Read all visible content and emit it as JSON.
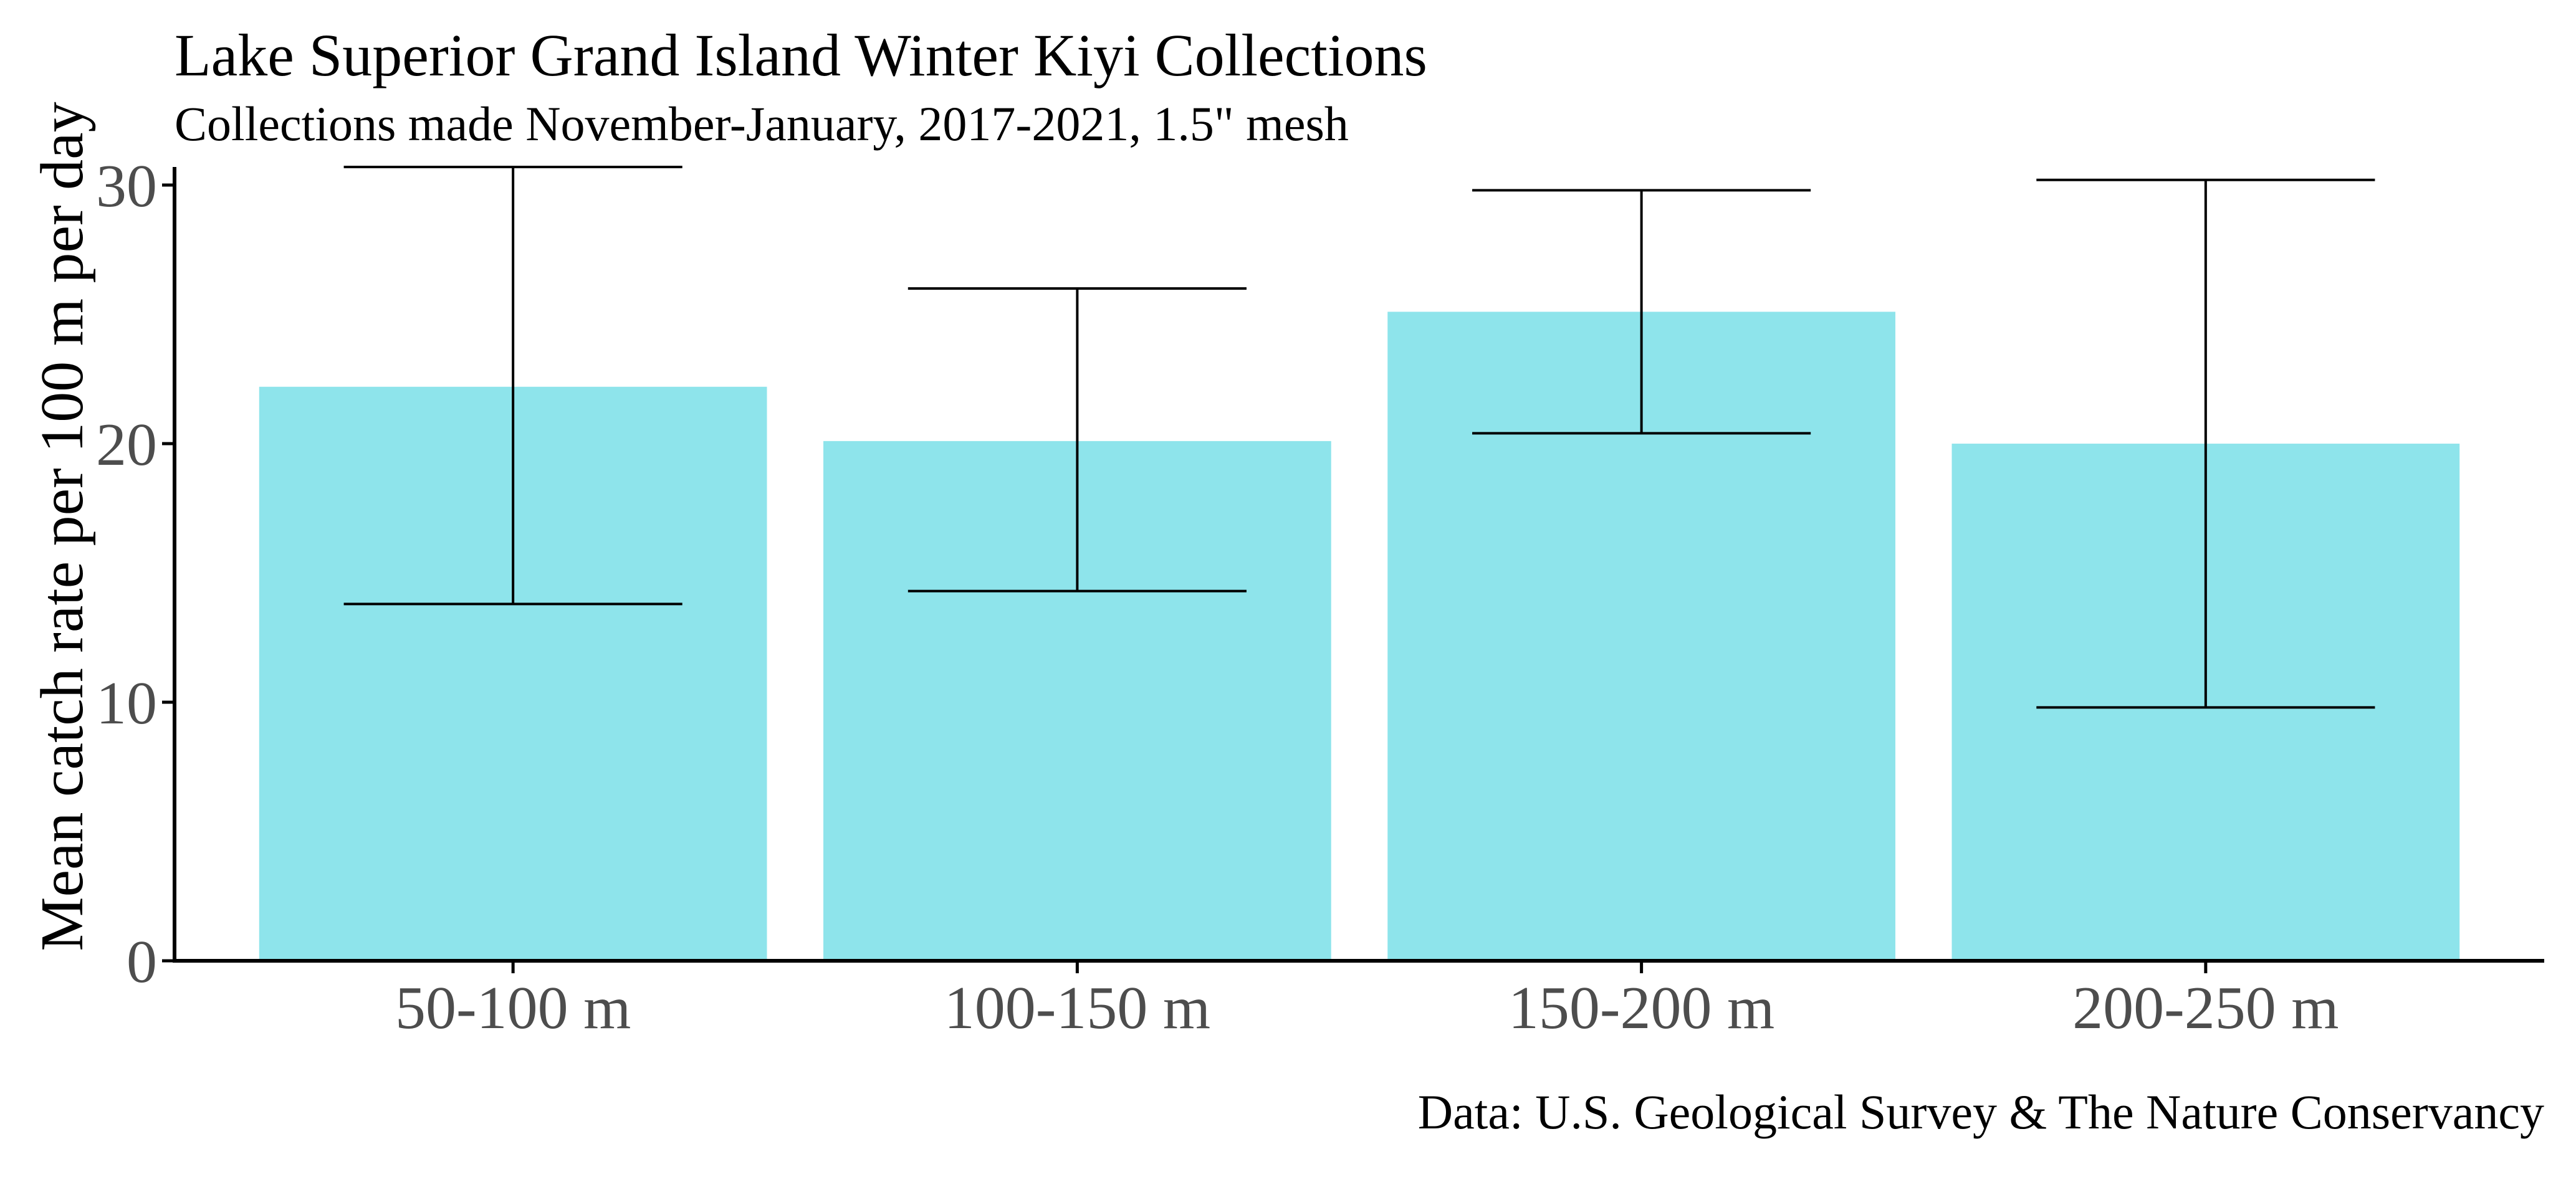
{
  "chart_data": {
    "type": "bar",
    "title": "Lake Superior Grand Island Winter Kiyi Collections",
    "subtitle": "Collections made November-January, 2017-2021, 1.5\" mesh",
    "caption": "Data: U.S. Geological Survey & The Nature Conservancy",
    "xlabel": "",
    "ylabel": "Mean catch rate per 100 m per day",
    "categories": [
      "50-100 m",
      "100-150 m",
      "150-200 m",
      "200-250 m"
    ],
    "values": [
      22.2,
      20.1,
      25.1,
      20.0
    ],
    "error_bars": {
      "lower": [
        13.8,
        14.3,
        20.4,
        9.8
      ],
      "upper": [
        30.7,
        26.0,
        29.8,
        30.2
      ]
    },
    "ylim": [
      0,
      30.7
    ],
    "yticks": [
      0,
      10,
      20,
      30
    ],
    "ytick_labels": [
      "0",
      "10",
      "20",
      "30"
    ],
    "grid": false,
    "legend": "none",
    "colors": {
      "bar": "#8ee4eb",
      "error_bar": "#000000",
      "axis": "#000000",
      "tick_label": "#4d4d4d"
    }
  }
}
